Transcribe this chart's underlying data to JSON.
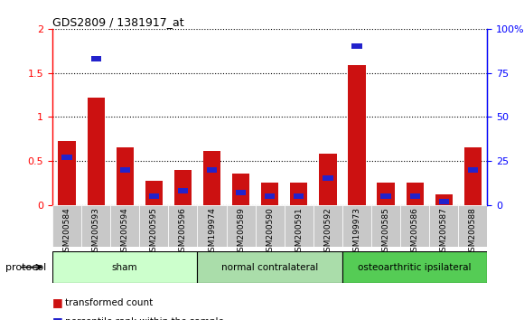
{
  "title": "GDS2809 / 1381917_at",
  "samples": [
    "GSM200584",
    "GSM200593",
    "GSM200594",
    "GSM200595",
    "GSM200596",
    "GSM199974",
    "GSM200589",
    "GSM200590",
    "GSM200591",
    "GSM200592",
    "GSM199973",
    "GSM200585",
    "GSM200586",
    "GSM200587",
    "GSM200588"
  ],
  "red_values": [
    0.72,
    1.22,
    0.65,
    0.27,
    0.4,
    0.61,
    0.35,
    0.25,
    0.25,
    0.58,
    1.59,
    0.25,
    0.25,
    0.12,
    0.65
  ],
  "blue_pct": [
    27,
    83,
    20,
    5,
    8,
    20,
    7,
    5,
    5,
    15,
    90,
    5,
    5,
    2,
    20
  ],
  "groups": {
    "sham": [
      0,
      1,
      2,
      3,
      4
    ],
    "normal contralateral": [
      5,
      6,
      7,
      8,
      9
    ],
    "osteoarthritic ipsilateral": [
      10,
      11,
      12,
      13,
      14
    ]
  },
  "group_labels": [
    "sham",
    "normal contralateral",
    "osteoarthritic ipsilateral"
  ],
  "group_colors": [
    "#ccffcc",
    "#aaddaa",
    "#55cc55"
  ],
  "bar_color_red": "#cc1111",
  "bar_color_blue": "#2222cc",
  "ylim_left": [
    0,
    2.0
  ],
  "ylim_right": [
    0,
    100
  ],
  "yticks_left": [
    0,
    0.5,
    1.0,
    1.5,
    2.0
  ],
  "ytick_labels_left": [
    "0",
    "0.5",
    "1",
    "1.5",
    "2"
  ],
  "yticks_right": [
    0,
    25,
    50,
    75,
    100
  ],
  "ytick_labels_right": [
    "0",
    "25",
    "50",
    "75",
    "100%"
  ],
  "bg_color": "#ffffff",
  "tick_bg_color": "#cccccc",
  "protocol_label": "protocol"
}
